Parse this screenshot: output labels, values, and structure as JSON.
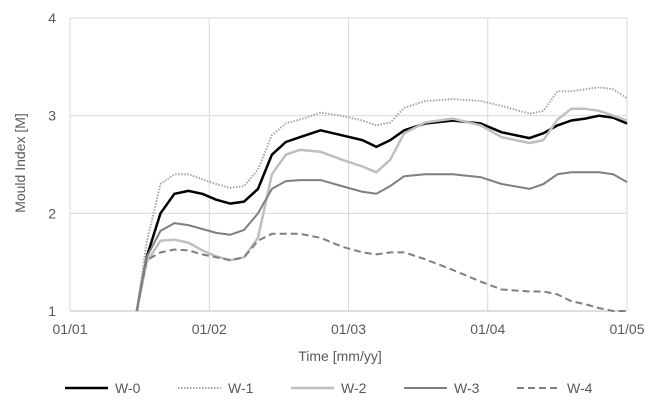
{
  "chart_data": {
    "type": "line",
    "title": "",
    "xlabel": "Time [mm/yy]",
    "ylabel": "Mould Index [M]",
    "ylim": [
      1,
      4
    ],
    "yticks": [
      "1",
      "2",
      "3",
      "4"
    ],
    "xticks": [
      "01/01",
      "01/02",
      "01/03",
      "01/04",
      "01/05"
    ],
    "xlim_months": [
      0,
      4
    ],
    "grid": true,
    "legend_position": "bottom",
    "series": [
      {
        "name": "W-0",
        "color": "#000000",
        "dash": "solid",
        "x": [
          0.48,
          0.55,
          0.65,
          0.75,
          0.85,
          0.95,
          1.05,
          1.15,
          1.25,
          1.35,
          1.45,
          1.55,
          1.65,
          1.8,
          1.95,
          2.1,
          2.2,
          2.3,
          2.4,
          2.55,
          2.75,
          2.95,
          3.1,
          3.3,
          3.4,
          3.5,
          3.6,
          3.7,
          3.8,
          3.9,
          4.0
        ],
        "y": [
          1.0,
          1.55,
          2.0,
          2.2,
          2.23,
          2.2,
          2.14,
          2.1,
          2.12,
          2.25,
          2.6,
          2.73,
          2.78,
          2.85,
          2.8,
          2.75,
          2.68,
          2.75,
          2.85,
          2.92,
          2.95,
          2.92,
          2.83,
          2.77,
          2.82,
          2.9,
          2.95,
          2.97,
          3.0,
          2.98,
          2.92
        ]
      },
      {
        "name": "W-1",
        "color": "#a6a6a6",
        "dash": "dotted",
        "x": [
          0.48,
          0.55,
          0.65,
          0.75,
          0.85,
          0.95,
          1.05,
          1.15,
          1.25,
          1.35,
          1.45,
          1.55,
          1.65,
          1.8,
          1.95,
          2.1,
          2.2,
          2.3,
          2.4,
          2.55,
          2.75,
          2.95,
          3.1,
          3.3,
          3.4,
          3.5,
          3.6,
          3.7,
          3.8,
          3.9,
          4.0
        ],
        "y": [
          1.0,
          1.7,
          2.3,
          2.4,
          2.4,
          2.35,
          2.3,
          2.26,
          2.28,
          2.45,
          2.8,
          2.92,
          2.96,
          3.03,
          3.0,
          2.95,
          2.9,
          2.93,
          3.08,
          3.15,
          3.17,
          3.15,
          3.1,
          3.02,
          3.05,
          3.25,
          3.25,
          3.27,
          3.29,
          3.27,
          3.18
        ]
      },
      {
        "name": "W-2",
        "color": "#bfbfbf",
        "dash": "solid",
        "x": [
          0.48,
          0.55,
          0.65,
          0.75,
          0.85,
          0.95,
          1.05,
          1.15,
          1.25,
          1.35,
          1.45,
          1.55,
          1.65,
          1.8,
          1.95,
          2.1,
          2.2,
          2.3,
          2.4,
          2.55,
          2.75,
          2.95,
          3.1,
          3.3,
          3.4,
          3.5,
          3.6,
          3.7,
          3.8,
          3.9,
          4.0
        ],
        "y": [
          1.0,
          1.5,
          1.72,
          1.73,
          1.7,
          1.62,
          1.56,
          1.52,
          1.55,
          1.75,
          2.4,
          2.6,
          2.65,
          2.63,
          2.55,
          2.48,
          2.42,
          2.55,
          2.82,
          2.93,
          2.97,
          2.9,
          2.78,
          2.72,
          2.75,
          2.96,
          3.07,
          3.07,
          3.05,
          3.0,
          2.95
        ]
      },
      {
        "name": "W-3",
        "color": "#7f7f7f",
        "dash": "solid",
        "x": [
          0.48,
          0.55,
          0.65,
          0.75,
          0.85,
          0.95,
          1.05,
          1.15,
          1.25,
          1.35,
          1.45,
          1.55,
          1.65,
          1.8,
          1.95,
          2.1,
          2.2,
          2.3,
          2.4,
          2.55,
          2.75,
          2.95,
          3.1,
          3.3,
          3.4,
          3.5,
          3.6,
          3.7,
          3.8,
          3.9,
          4.0
        ],
        "y": [
          1.0,
          1.55,
          1.82,
          1.9,
          1.88,
          1.84,
          1.8,
          1.78,
          1.83,
          2.0,
          2.25,
          2.33,
          2.34,
          2.34,
          2.28,
          2.22,
          2.2,
          2.28,
          2.38,
          2.4,
          2.4,
          2.37,
          2.3,
          2.25,
          2.3,
          2.4,
          2.42,
          2.42,
          2.42,
          2.4,
          2.32
        ]
      },
      {
        "name": "W-4",
        "color": "#7f7f7f",
        "dash": "dashed",
        "x": [
          0.48,
          0.55,
          0.65,
          0.75,
          0.85,
          0.95,
          1.05,
          1.15,
          1.25,
          1.35,
          1.45,
          1.55,
          1.65,
          1.8,
          1.95,
          2.1,
          2.2,
          2.3,
          2.4,
          2.55,
          2.75,
          2.95,
          3.1,
          3.3,
          3.4,
          3.5,
          3.6,
          3.7,
          3.8,
          3.9,
          4.0
        ],
        "y": [
          1.0,
          1.52,
          1.6,
          1.63,
          1.62,
          1.58,
          1.55,
          1.52,
          1.55,
          1.72,
          1.79,
          1.79,
          1.79,
          1.75,
          1.66,
          1.6,
          1.58,
          1.6,
          1.6,
          1.53,
          1.42,
          1.3,
          1.22,
          1.2,
          1.2,
          1.17,
          1.1,
          1.07,
          1.03,
          0.98,
          0.97
        ]
      }
    ]
  }
}
